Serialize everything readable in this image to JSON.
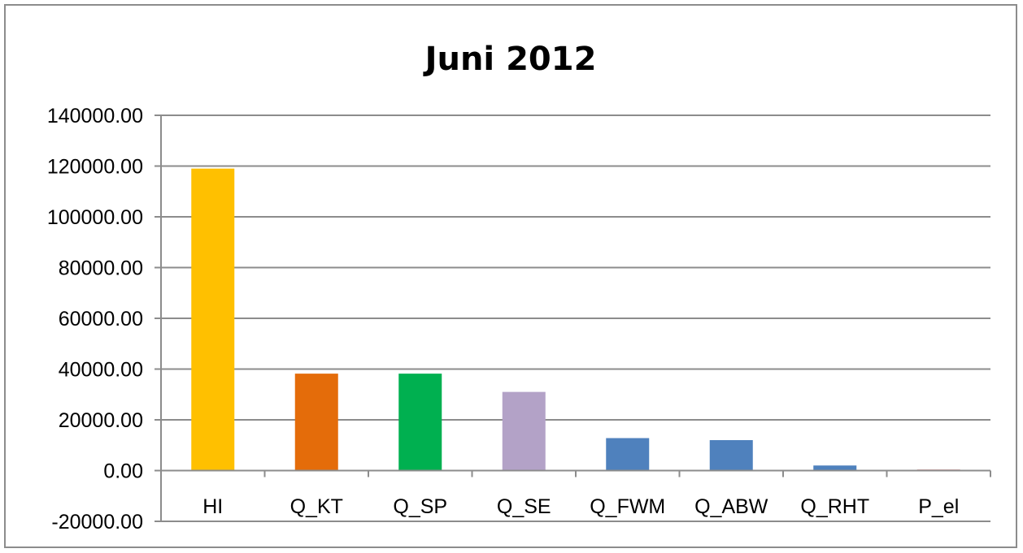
{
  "chart_data": {
    "type": "bar",
    "title": "Juni 2012",
    "categories": [
      "HI",
      "Q_KT",
      "Q_SP",
      "Q_SE",
      "Q_FWM",
      "Q_ABW",
      "Q_RHT",
      "P_el"
    ],
    "values": [
      119000,
      38200,
      38200,
      31000,
      12800,
      12000,
      2000,
      500
    ],
    "colors": [
      "#FFC000",
      "#E46C0A",
      "#00B050",
      "#B3A2C7",
      "#4F81BD",
      "#4F81BD",
      "#4F81BD",
      "#E6B9B8"
    ],
    "ylim": [
      -20000,
      140000
    ],
    "yticks": [
      "140000.00",
      "120000.00",
      "100000.00",
      "80000.00",
      "60000.00",
      "40000.00",
      "20000.00",
      "0.00",
      "-20000.00"
    ],
    "grid": true,
    "legend": "none"
  }
}
